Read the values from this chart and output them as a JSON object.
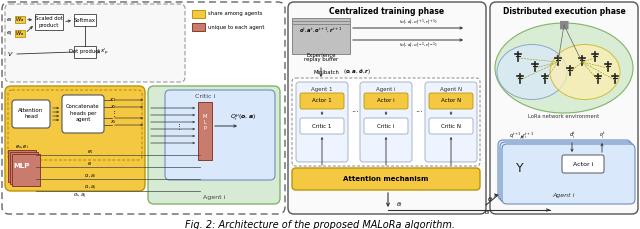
{
  "title": "Fig. 2: Architecture of the proposed MALoRa algorithm.",
  "phase1_title": "Centralized training phase",
  "phase2_title": "Distributed execution phase",
  "bg_color": "#ffffff",
  "yellow": "#F5C842",
  "yellow_ec": "#B8960A",
  "pink": "#C97B6E",
  "pink_ec": "#8B3A2A",
  "green_fc": "#D6EAD4",
  "green_ec": "#82B36A",
  "blue_fc": "#DAE8FC",
  "blue_ec": "#6C8EBF",
  "gray_fc": "#BBBBBB",
  "gray_ec": "#888888"
}
